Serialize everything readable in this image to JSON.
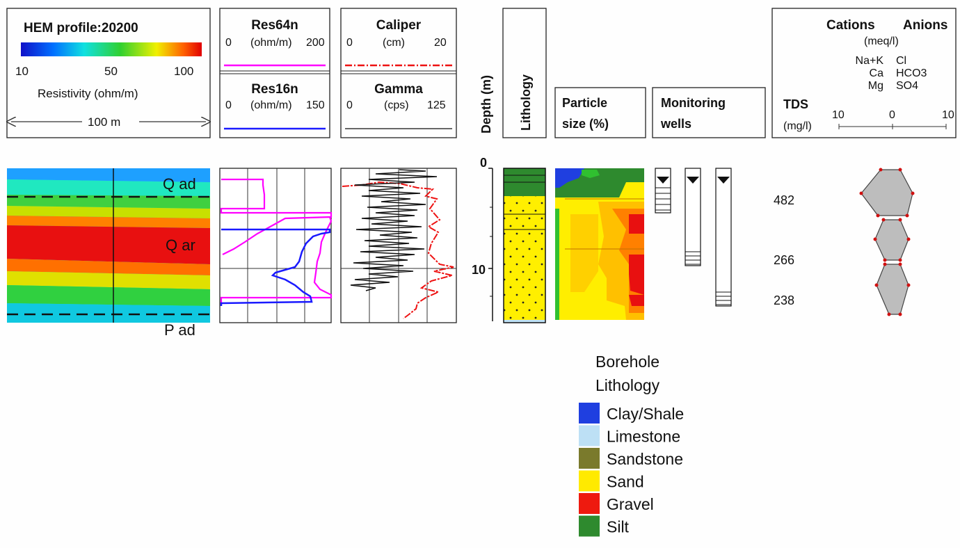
{
  "hem": {
    "title": "HEM profile:20200",
    "ticks": [
      "10",
      "50",
      "100"
    ],
    "axis_label": "Resistivity (ohm/m)",
    "scale_label": "100 m",
    "units": [
      "Q ad",
      "Q ar",
      "P ad"
    ]
  },
  "res64": {
    "title": "Res64n",
    "min": "0",
    "unit": "(ohm/m)",
    "max": "200",
    "color": "#ff00ff"
  },
  "res16": {
    "title": "Res16n",
    "min": "0",
    "unit": "(ohm/m)",
    "max": "150",
    "color": "#1a1aff"
  },
  "caliper": {
    "title": "Caliper",
    "min": "0",
    "unit": "(cm)",
    "max": "20",
    "color": "#ee1111"
  },
  "gamma": {
    "title": "Gamma",
    "min": "0",
    "unit": "(cps)",
    "max": "125",
    "color": "#111111"
  },
  "depth": {
    "title": "Depth (m)",
    "ticks": [
      "0",
      "10"
    ]
  },
  "lithology": {
    "title": "Lithology"
  },
  "particle": {
    "title_line1": "Particle",
    "title_line2": "size (%)"
  },
  "wells": {
    "title_line1": "Monitoring",
    "title_line2": "wells"
  },
  "tds": {
    "title": "TDS",
    "unit": "(mg/l)",
    "values": [
      "482",
      "266",
      "238"
    ]
  },
  "stiff": {
    "cations": "Cations",
    "anions": "Anions",
    "unit": "(meq/l)",
    "cation_ions": [
      "Na+K",
      "Ca",
      "Mg"
    ],
    "anion_ions": [
      "Cl",
      "HCO3",
      "SO4"
    ],
    "scale": [
      "10",
      "0",
      "10"
    ]
  },
  "legend": {
    "title_line1": "Borehole",
    "title_line2": "Lithology",
    "items": [
      {
        "label": "Clay/Shale",
        "color": "#1f3fe0"
      },
      {
        "label": "Limestone",
        "color": "#bde0f5"
      },
      {
        "label": "Sandstone",
        "color": "#7a7a2c"
      },
      {
        "label": "Sand",
        "color": "#ffea00"
      },
      {
        "label": "Gravel",
        "color": "#ee1a0f"
      },
      {
        "label": "Silt",
        "color": "#2e8a2e"
      }
    ]
  }
}
